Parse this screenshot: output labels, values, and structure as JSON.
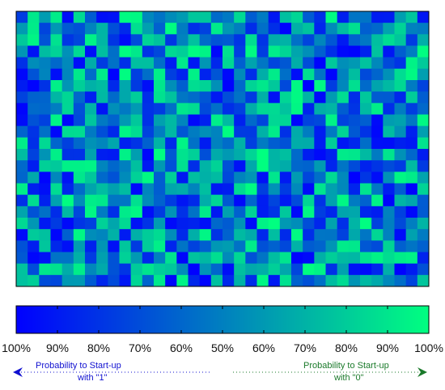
{
  "chart_data": {
    "type": "heatmap",
    "grid": {
      "rows": 24,
      "cols": 36
    },
    "colormap": {
      "low_color": "#0000ff",
      "high_color": "#00ff80"
    },
    "seed": 7,
    "colorbar": {
      "tick_labels": [
        "100%",
        "90%",
        "80%",
        "70%",
        "60%",
        "50%",
        "60%",
        "70%",
        "80%",
        "90%",
        "100%"
      ]
    },
    "legend": {
      "left": {
        "line1": "Probability to Start-up",
        "line2": "with \"1\"",
        "color": "#1010d0"
      },
      "right": {
        "line1": "Probability to Start-up",
        "line2": "with \"0\"",
        "color": "#1a7a2a"
      }
    }
  }
}
